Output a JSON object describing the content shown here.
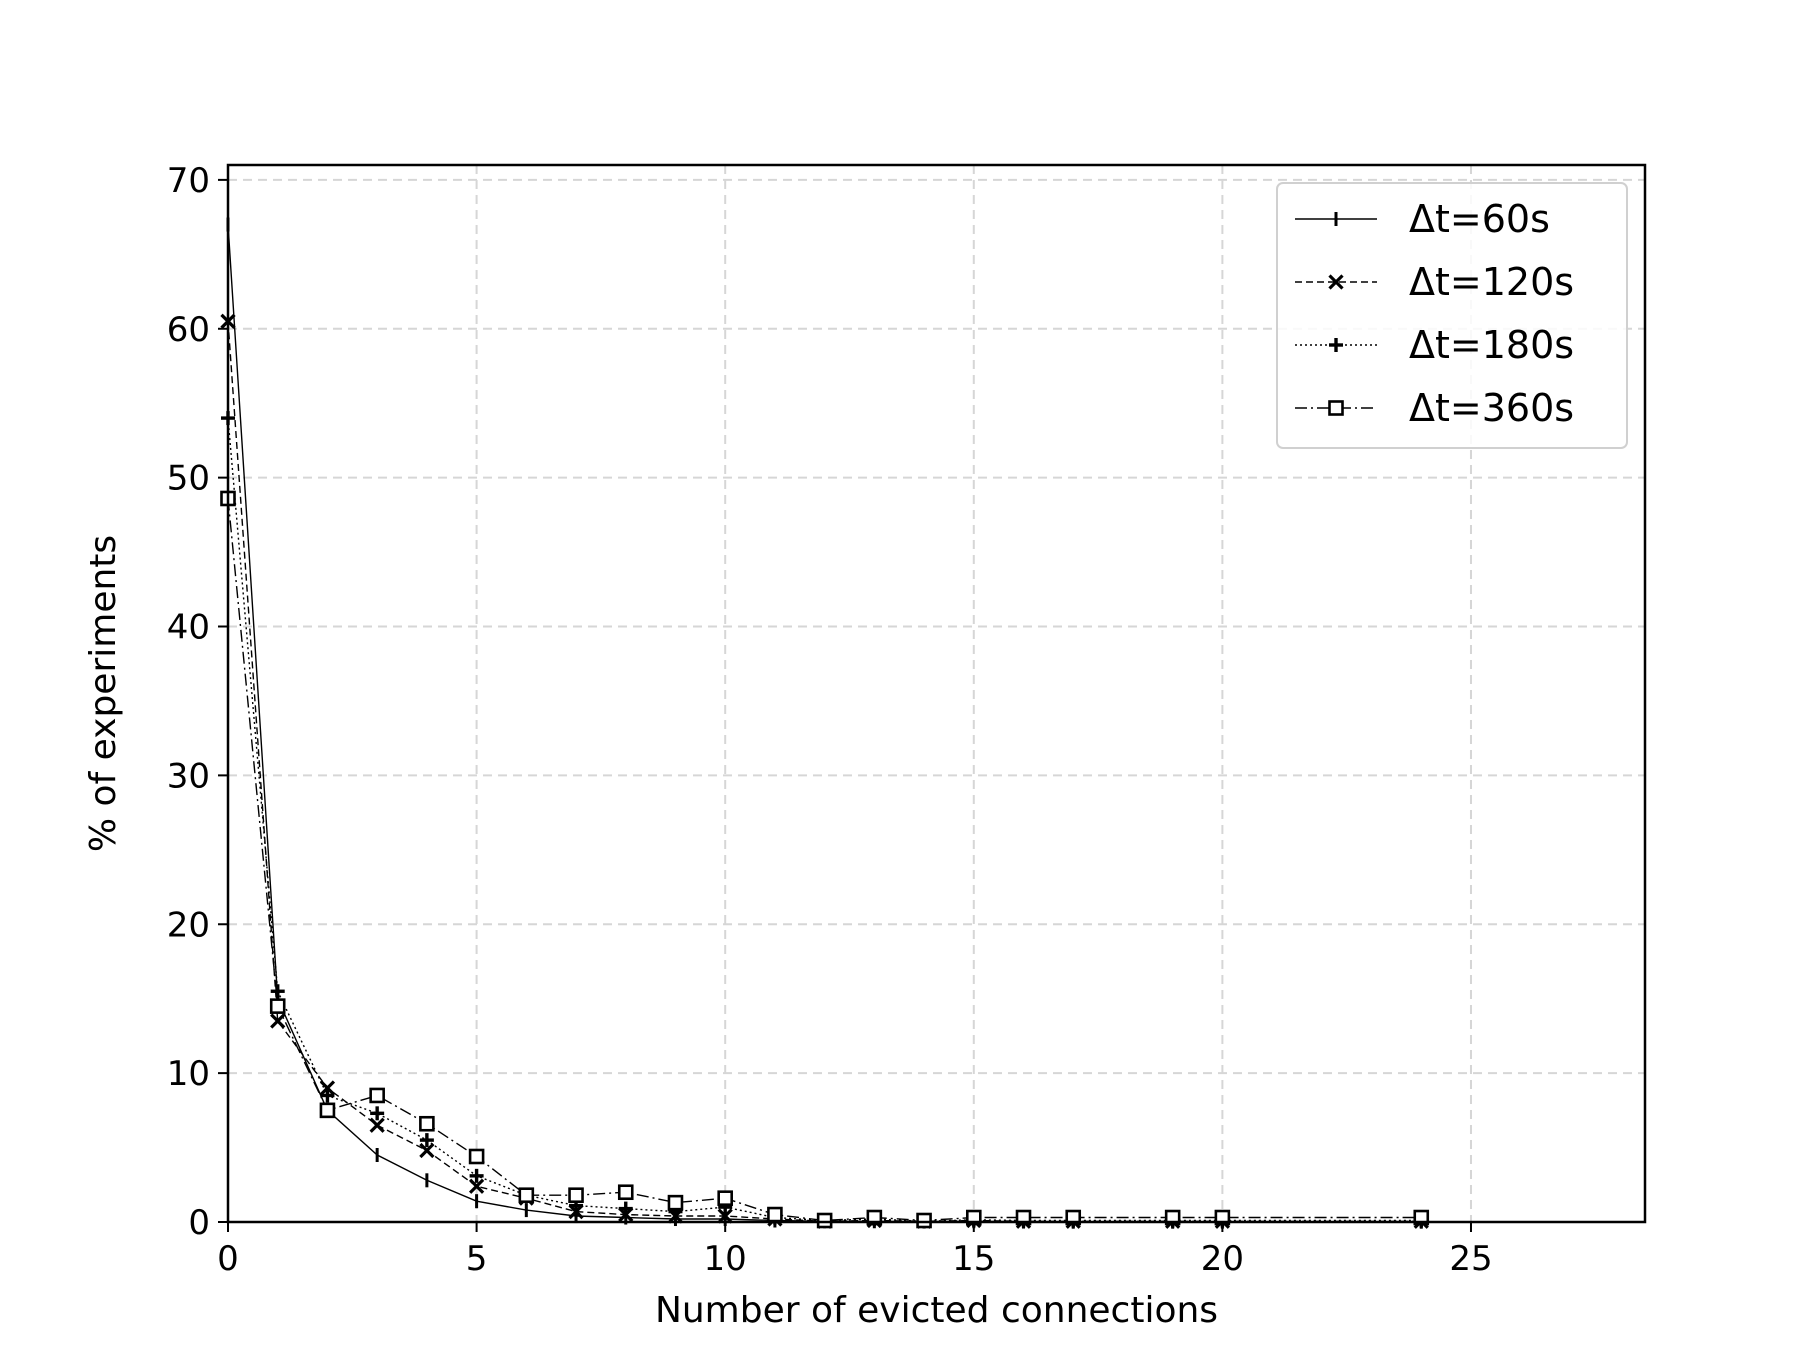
{
  "chart_data": {
    "type": "line",
    "title": "",
    "xlabel": "Number of evicted connections",
    "ylabel": "% of experiments",
    "xlim": [
      0,
      28.5
    ],
    "ylim": [
      0,
      71
    ],
    "xticks": [
      0,
      5,
      10,
      15,
      20,
      25
    ],
    "yticks": [
      0,
      10,
      20,
      30,
      40,
      50,
      60,
      70
    ],
    "grid": true,
    "legend_position": "top-right",
    "series": [
      {
        "name": "Δt=60s",
        "marker": "vline",
        "linestyle": "solid",
        "x": [
          0,
          1,
          2,
          3,
          4,
          5,
          6,
          7,
          8,
          9,
          10,
          11,
          12,
          13,
          14,
          15,
          16,
          17,
          19,
          20,
          24
        ],
        "y": [
          67,
          15,
          7.5,
          4.5,
          2.8,
          1.4,
          0.8,
          0.4,
          0.3,
          0.2,
          0.2,
          0.1,
          0.05,
          0.05,
          0.03,
          0.05,
          0.03,
          0.02,
          0.02,
          0.02,
          0.02
        ]
      },
      {
        "name": "Δt=120s",
        "marker": "x",
        "linestyle": "dashed",
        "x": [
          0,
          1,
          2,
          3,
          4,
          5,
          6,
          7,
          8,
          9,
          10,
          11,
          12,
          13,
          14,
          15,
          16,
          17,
          19,
          20,
          24
        ],
        "y": [
          60.5,
          13.5,
          9,
          6.5,
          4.8,
          2.4,
          1.6,
          0.7,
          0.5,
          0.4,
          0.4,
          0.2,
          0.05,
          0.1,
          0.05,
          0.1,
          0.05,
          0.05,
          0.05,
          0.05,
          0.05
        ]
      },
      {
        "name": "Δt=180s",
        "marker": "plus",
        "linestyle": "dotted",
        "x": [
          0,
          1,
          2,
          3,
          4,
          5,
          6,
          7,
          8,
          9,
          10,
          11,
          12,
          13,
          14,
          15,
          16,
          17,
          19,
          20,
          24
        ],
        "y": [
          54,
          15.5,
          8.5,
          7.3,
          5.5,
          3.1,
          1.8,
          1.1,
          0.9,
          0.7,
          1.0,
          0.3,
          0.1,
          0.2,
          0.05,
          0.15,
          0.1,
          0.1,
          0.1,
          0.1,
          0.1
        ]
      },
      {
        "name": "Δt=360s",
        "marker": "square",
        "linestyle": "dashdot",
        "x": [
          0,
          1,
          2,
          3,
          4,
          5,
          6,
          7,
          8,
          9,
          10,
          11,
          12,
          13,
          14,
          15,
          16,
          17,
          19,
          20,
          24
        ],
        "y": [
          48.6,
          14.5,
          7.5,
          8.5,
          6.6,
          4.4,
          1.8,
          1.8,
          2.0,
          1.3,
          1.6,
          0.5,
          0.1,
          0.3,
          0.1,
          0.3,
          0.3,
          0.3,
          0.3,
          0.3,
          0.3
        ]
      }
    ]
  }
}
